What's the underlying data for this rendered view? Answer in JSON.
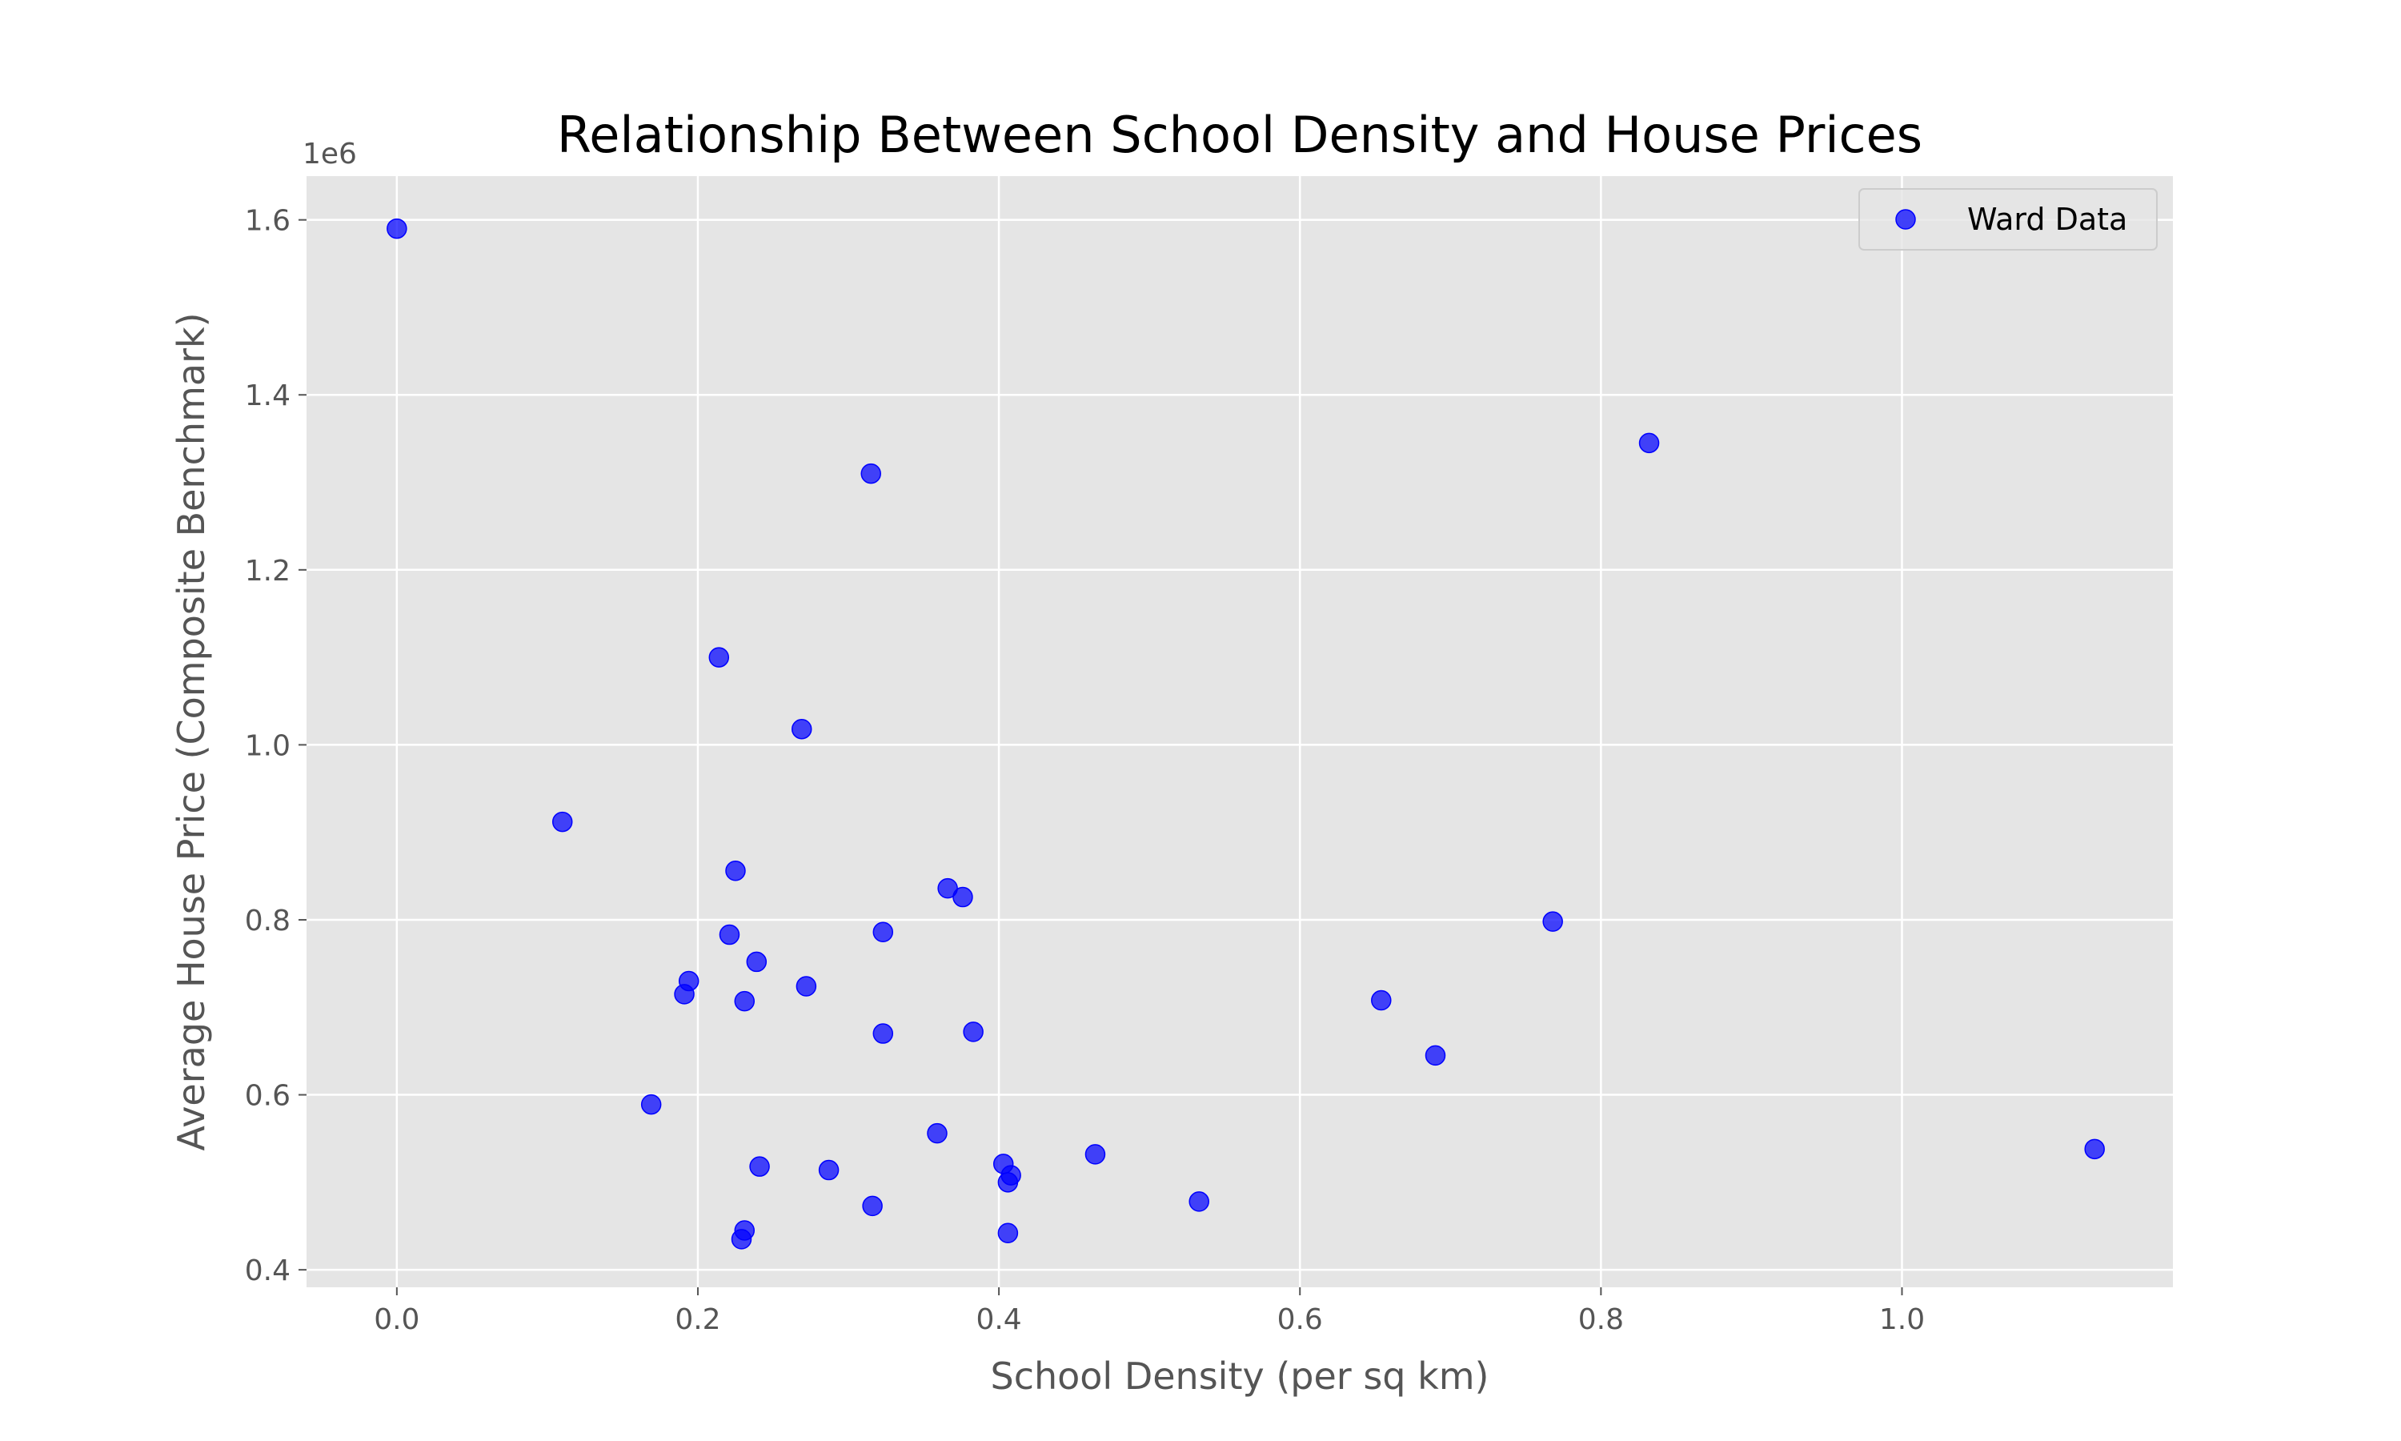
{
  "chart_data": {
    "type": "scatter",
    "title": "Relationship Between School Density and House Prices",
    "xlabel": "School Density (per sq km)",
    "ylabel": "Average House Price (Composite Benchmark)",
    "y_offset_label": "1e6",
    "xlim": [
      -0.06,
      1.18
    ],
    "ylim": [
      380000,
      1650000
    ],
    "xticks": [
      0.0,
      0.2,
      0.4,
      0.6,
      0.8,
      1.0
    ],
    "xtick_labels": [
      "0.0",
      "0.2",
      "0.4",
      "0.6",
      "0.8",
      "1.0"
    ],
    "yticks": [
      400000,
      600000,
      800000,
      1000000,
      1200000,
      1400000,
      1600000
    ],
    "ytick_labels": [
      "0.4",
      "0.6",
      "0.8",
      "1.0",
      "1.2",
      "1.4",
      "1.6"
    ],
    "grid": true,
    "legend_position": "top-right",
    "series": [
      {
        "name": "Ward Data",
        "color": "#0000ff",
        "points": [
          {
            "x": 0.0,
            "y": 1590000
          },
          {
            "x": 0.315,
            "y": 1310000
          },
          {
            "x": 0.832,
            "y": 1345000
          },
          {
            "x": 0.214,
            "y": 1100000
          },
          {
            "x": 0.269,
            "y": 1018000
          },
          {
            "x": 0.11,
            "y": 912000
          },
          {
            "x": 0.225,
            "y": 856000
          },
          {
            "x": 0.366,
            "y": 836000
          },
          {
            "x": 0.376,
            "y": 826000
          },
          {
            "x": 0.768,
            "y": 798000
          },
          {
            "x": 0.323,
            "y": 786000
          },
          {
            "x": 0.221,
            "y": 783000
          },
          {
            "x": 0.239,
            "y": 752000
          },
          {
            "x": 0.194,
            "y": 730000
          },
          {
            "x": 0.272,
            "y": 724000
          },
          {
            "x": 0.191,
            "y": 715000
          },
          {
            "x": 0.231,
            "y": 707000
          },
          {
            "x": 0.654,
            "y": 708000
          },
          {
            "x": 0.323,
            "y": 670000
          },
          {
            "x": 0.383,
            "y": 672000
          },
          {
            "x": 0.69,
            "y": 645000
          },
          {
            "x": 0.169,
            "y": 589000
          },
          {
            "x": 0.359,
            "y": 556000
          },
          {
            "x": 1.128,
            "y": 538000
          },
          {
            "x": 0.464,
            "y": 532000
          },
          {
            "x": 0.403,
            "y": 521000
          },
          {
            "x": 0.241,
            "y": 518000
          },
          {
            "x": 0.287,
            "y": 514000
          },
          {
            "x": 0.408,
            "y": 508000
          },
          {
            "x": 0.406,
            "y": 500000
          },
          {
            "x": 0.533,
            "y": 478000
          },
          {
            "x": 0.316,
            "y": 473000
          },
          {
            "x": 0.231,
            "y": 445000
          },
          {
            "x": 0.406,
            "y": 442000
          },
          {
            "x": 0.229,
            "y": 435000
          }
        ]
      }
    ]
  }
}
